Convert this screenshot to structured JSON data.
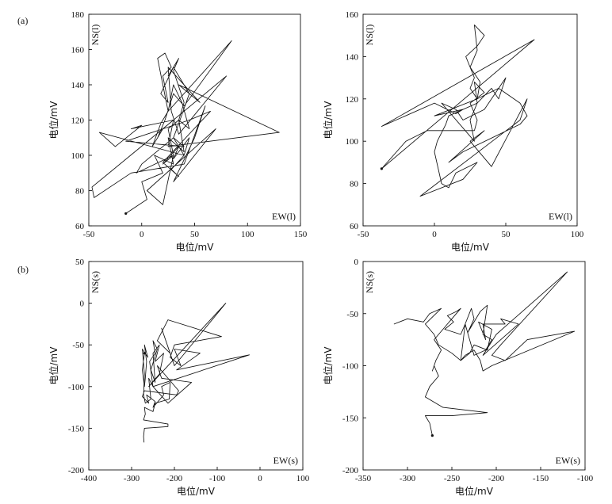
{
  "figure": {
    "panel_labels": [
      "(a)",
      "(b)"
    ]
  },
  "chart_data": [
    {
      "id": "a-left",
      "type": "line",
      "xlabel": "电位/mV",
      "ylabel": "电位/mV",
      "corner_x": "EW(l)",
      "corner_y": "NS(l)",
      "xlim": [
        -50,
        150
      ],
      "ylim": [
        60,
        180
      ],
      "xticks": [
        -50,
        0,
        50,
        100,
        150
      ],
      "yticks": [
        60,
        80,
        100,
        120,
        140,
        160,
        180
      ],
      "series": [
        {
          "x": [
            -15,
            5,
            0,
            20,
            12,
            30,
            25,
            40,
            35,
            45,
            38,
            30,
            25,
            85,
            40,
            30,
            22,
            15,
            20,
            80,
            35,
            28,
            25,
            55,
            35,
            130,
            25,
            30,
            20,
            15,
            10,
            18,
            25,
            20,
            15,
            22,
            28,
            20,
            25,
            18,
            30,
            25,
            35,
            30,
            40,
            35,
            25,
            30,
            20,
            35,
            30,
            45,
            40,
            -40,
            -25,
            0,
            -10,
            30,
            -47,
            -45,
            -10,
            40,
            60,
            50,
            30,
            70,
            5,
            20,
            30,
            -5,
            0,
            30,
            40,
            -15,
            45,
            65,
            20,
            35,
            28,
            40,
            30,
            35,
            45,
            30
          ],
          "y": [
            67,
            75,
            85,
            90,
            100,
            95,
            110,
            102,
            120,
            115,
            130,
            140,
            125,
            165,
            128,
            135,
            120,
            110,
            115,
            145,
            112,
            125,
            150,
            130,
            140,
            113,
            105,
            120,
            115,
            110,
            105,
            118,
            125,
            140,
            155,
            158,
            150,
            145,
            130,
            135,
            150,
            145,
            155,
            148,
            130,
            120,
            115,
            100,
            95,
            105,
            98,
            110,
            100,
            113,
            105,
            117,
            115,
            120,
            82,
            76,
            90,
            95,
            128,
            110,
            85,
            115,
            80,
            72,
            100,
            90,
            95,
            110,
            105,
            108,
            120,
            125,
            96,
            88,
            92,
            100,
            110,
            118,
            135,
            150
          ]
        }
      ]
    },
    {
      "id": "a-right",
      "type": "line",
      "xlabel": "电位/mV",
      "ylabel": "电位/mV",
      "corner_x": "EW(l)",
      "corner_y": "NS(l)",
      "xlim": [
        -50,
        100
      ],
      "ylim": [
        60,
        160
      ],
      "xticks": [
        -50,
        0,
        50,
        100
      ],
      "yticks": [
        60,
        80,
        100,
        120,
        140,
        160
      ],
      "series": [
        {
          "x": [
            -37,
            70,
            -37,
            0,
            15,
            20,
            0,
            30,
            25,
            28,
            22,
            30,
            35,
            28,
            30,
            25,
            32,
            30,
            45,
            60,
            65,
            60,
            20,
            10,
            35,
            25,
            40,
            65,
            60,
            -10,
            20,
            30,
            15,
            10,
            5,
            0,
            2,
            8,
            10,
            30,
            25,
            28,
            5,
            15,
            20,
            35,
            50,
            45,
            40,
            30,
            28,
            35,
            25,
            30,
            28,
            -5,
            -20,
            -37
          ],
          "y": [
            87,
            148,
            107,
            118,
            113,
            115,
            112,
            120,
            125,
            130,
            140,
            145,
            150,
            155,
            143,
            135,
            128,
            120,
            125,
            118,
            112,
            108,
            95,
            90,
            105,
            100,
            88,
            120,
            110,
            74,
            82,
            90,
            85,
            78,
            80,
            95,
            100,
            108,
            112,
            118,
            110,
            100,
            118,
            115,
            110,
            115,
            130,
            120,
            125,
            118,
            128,
            123,
            118,
            110,
            105,
            105,
            100,
            87
          ]
        }
      ]
    },
    {
      "id": "b-left",
      "type": "line",
      "xlabel": "电位/mV",
      "ylabel": "电位/mV",
      "corner_x": "EW(s)",
      "corner_y": "NS(s)",
      "xlim": [
        -400,
        100
      ],
      "ylim": [
        -200,
        50
      ],
      "xticks": [
        -400,
        -300,
        -200,
        -100,
        0,
        100
      ],
      "yticks": [
        -200,
        -150,
        -100,
        -50,
        0,
        50
      ],
      "series": [
        {
          "x": [
            -270,
            -275,
            -270,
            -268,
            -265,
            -270,
            -262,
            -275,
            -270,
            -272,
            -268,
            -255,
            -260,
            -250,
            -258,
            -245,
            -250,
            -240,
            -255,
            -245,
            -250,
            -235,
            -245,
            -225,
            -235,
            -260,
            -80,
            -200,
            -230,
            -210,
            -240,
            -215,
            -90,
            -200,
            -210,
            -185,
            -200,
            -140,
            -195,
            -25,
            -250,
            -215,
            -160,
            -230,
            -240,
            -190,
            -195,
            -270,
            -275,
            -260,
            -265,
            -245,
            -250,
            -225,
            -230,
            -210,
            -212,
            -245,
            -250,
            -270,
            -268,
            -272,
            -215,
            -215,
            -270,
            -272,
            -271
          ],
          "y": [
            -60,
            -80,
            -100,
            -90,
            -70,
            -50,
            -65,
            -55,
            -85,
            -110,
            -120,
            -115,
            -90,
            -100,
            -70,
            -60,
            -45,
            -55,
            -80,
            -95,
            -60,
            -50,
            -70,
            -60,
            -85,
            -100,
            0,
            -75,
            -30,
            -60,
            -45,
            -20,
            -40,
            -50,
            -65,
            -75,
            -55,
            -60,
            -80,
            -62,
            -100,
            -120,
            -95,
            -90,
            -75,
            -105,
            -110,
            -105,
            -112,
            -120,
            -110,
            -118,
            -125,
            -110,
            -100,
            -95,
            -115,
            -120,
            -130,
            -125,
            -133,
            -140,
            -145,
            -148,
            -150,
            -160,
            -167
          ]
        }
      ]
    },
    {
      "id": "b-right",
      "type": "line",
      "xlabel": "电位/mV",
      "ylabel": "电位/mV",
      "corner_x": "EW(s)",
      "corner_y": "NS(s)",
      "xlim": [
        -350,
        -100
      ],
      "ylim": [
        -200,
        0
      ],
      "xticks": [
        -350,
        -300,
        -250,
        -200,
        -150,
        -100
      ],
      "yticks": [
        -200,
        -150,
        -100,
        -50,
        0
      ],
      "series": [
        {
          "x": [
            -272,
            -275,
            -280,
            -250,
            -210,
            -260,
            -280,
            -275,
            -265,
            -270,
            -272,
            -268,
            -262,
            -270,
            -260,
            -255,
            -250,
            -240,
            -245,
            -255,
            -248,
            -258,
            -240,
            -235,
            -228,
            -225,
            -232,
            -218,
            -210,
            -215,
            -205,
            -212,
            -225,
            -230,
            -235,
            -240,
            -230,
            -225,
            -210,
            -205,
            -220,
            -212,
            -215,
            -190,
            -195,
            -175,
            -215,
            -200,
            -180,
            -160,
            -120,
            -195,
            -205,
            -190,
            -165,
            -112,
            -205,
            -215,
            -218,
            -225,
            -235,
            -240,
            -250,
            -265,
            -270,
            -280,
            -262,
            -275,
            -282,
            -300,
            -315,
            -300
          ],
          "y": [
            -167,
            -155,
            -148,
            -148,
            -145,
            -140,
            -130,
            -120,
            -110,
            -100,
            -105,
            -95,
            -85,
            -75,
            -65,
            -60,
            -55,
            -45,
            -48,
            -52,
            -58,
            -65,
            -70,
            -60,
            -45,
            -55,
            -68,
            -48,
            -42,
            -70,
            -75,
            -85,
            -90,
            -75,
            -60,
            -95,
            -88,
            -80,
            -85,
            -65,
            -58,
            -75,
            -60,
            -60,
            -55,
            -60,
            -90,
            -70,
            -55,
            -40,
            -10,
            -80,
            -90,
            -95,
            -75,
            -67,
            -100,
            -105,
            -95,
            -85,
            -90,
            -95,
            -88,
            -80,
            -70,
            -60,
            -45,
            -50,
            -58,
            -55,
            -60,
            -55
          ]
        }
      ]
    }
  ]
}
